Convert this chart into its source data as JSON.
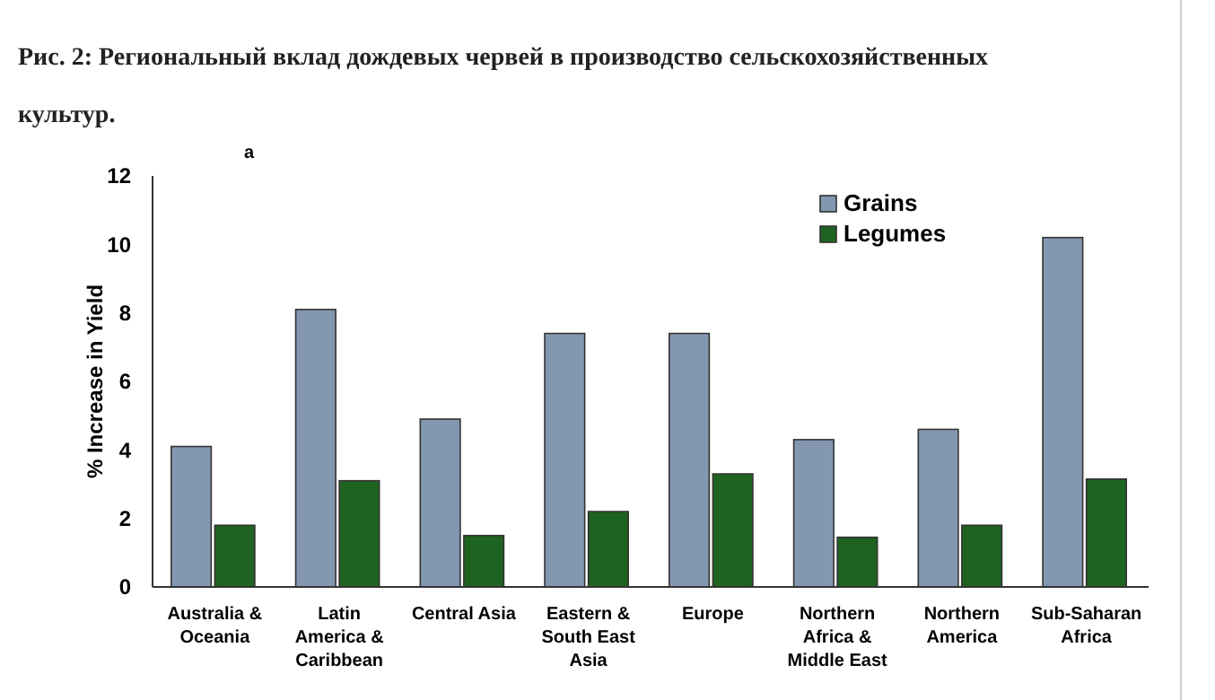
{
  "chart_data": {
    "type": "bar",
    "title": "Рис. 2: Региональный вклад дождевых червей в производство сельскохозяйственных культур.",
    "annotations": [
      "a"
    ],
    "ylabel": "% Increase in Yield",
    "categories": [
      "Australia & Oceania",
      "Latin America & Caribbean",
      "Central Asia",
      "Eastern & South East Asia",
      "Europe",
      "Northern Africa & Middle East",
      "Northern America",
      "Sub-Saharan Africa"
    ],
    "series": [
      {
        "name": "Grains",
        "color": "#8497b0",
        "values": [
          4.1,
          8.1,
          4.9,
          7.4,
          7.4,
          4.3,
          4.6,
          10.2
        ]
      },
      {
        "name": "Legumes",
        "color": "#1e6320",
        "values": [
          1.8,
          3.1,
          1.5,
          2.2,
          3.3,
          1.45,
          1.8,
          3.15
        ]
      }
    ],
    "ylim": [
      0,
      12
    ],
    "yticks": [
      0,
      2,
      4,
      6,
      8,
      10,
      12
    ],
    "grid": false,
    "legend": "top right"
  }
}
